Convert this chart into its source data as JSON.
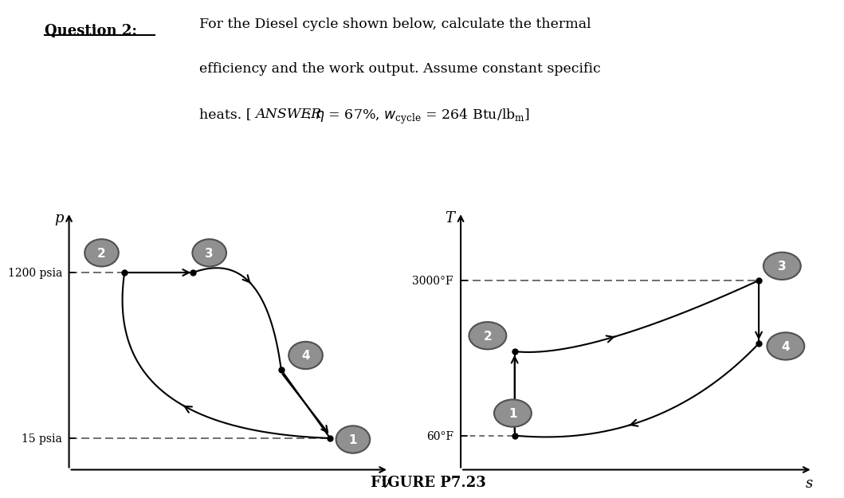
{
  "background_color": "#ffffff",
  "fig_width": 10.24,
  "fig_height": 6.11,
  "figure_label": "FIGURE P7.23",
  "circle_color": "#909090",
  "circle_edge_color": "#505050",
  "line_color": "#111111",
  "dashed_color": "#555555",
  "pv_label_p": "p",
  "pv_label_v": "v",
  "ts_label_t": "T",
  "ts_label_s": "s",
  "pv_1200_label": "1200 psia",
  "pv_15_label": "15 psia",
  "ts_3000_label": "3000°F",
  "ts_60_label": "60°F"
}
